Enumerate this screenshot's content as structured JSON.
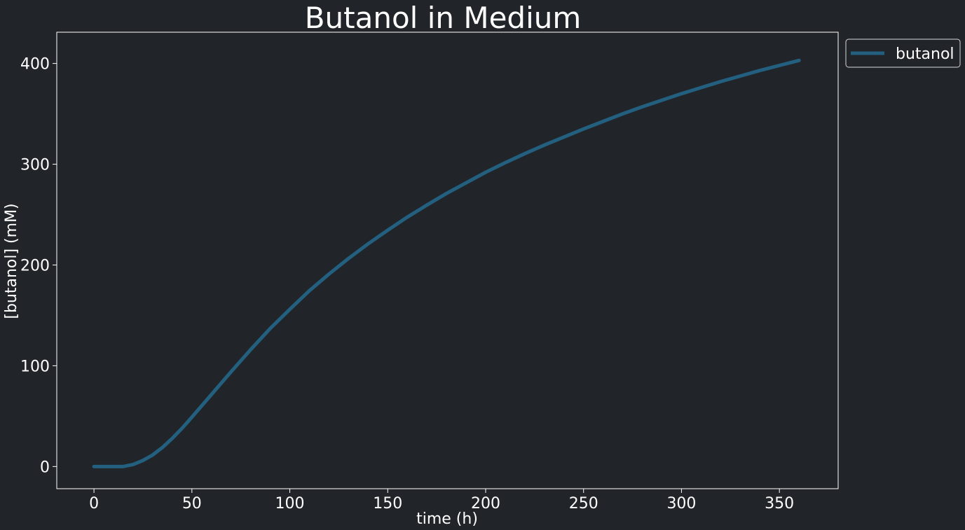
{
  "chart_data": {
    "type": "line",
    "title": "Butanol in Medium",
    "xlabel": "time (h)",
    "ylabel": "[butanol] (mM)",
    "xlim": [
      -19,
      380
    ],
    "ylim": [
      -22,
      431
    ],
    "xticks": [
      0,
      50,
      100,
      150,
      200,
      250,
      300,
      350
    ],
    "yticks": [
      0,
      100,
      200,
      300,
      400
    ],
    "grid": false,
    "legend_position": "outside-top-right",
    "background_color": "#212429",
    "axes_color": "#ffffff",
    "series": [
      {
        "name": "butanol",
        "color": "#23607f",
        "x": [
          0,
          5,
          10,
          15,
          20,
          25,
          30,
          35,
          40,
          45,
          50,
          60,
          70,
          80,
          90,
          100,
          110,
          120,
          130,
          140,
          150,
          160,
          170,
          180,
          190,
          200,
          210,
          220,
          230,
          240,
          250,
          260,
          270,
          280,
          290,
          300,
          310,
          320,
          330,
          340,
          350,
          360
        ],
        "y": [
          0,
          0,
          0,
          0,
          2,
          6,
          11.5,
          19,
          28,
          38,
          49,
          71.5,
          94,
          116,
          137,
          156,
          174.5,
          191,
          206.5,
          221,
          234.5,
          247.5,
          259.5,
          271,
          281.5,
          292,
          301.5,
          310.5,
          319,
          327,
          335,
          342.5,
          350,
          357,
          363.5,
          370,
          376,
          382,
          387.5,
          393,
          398,
          403
        ]
      }
    ]
  }
}
